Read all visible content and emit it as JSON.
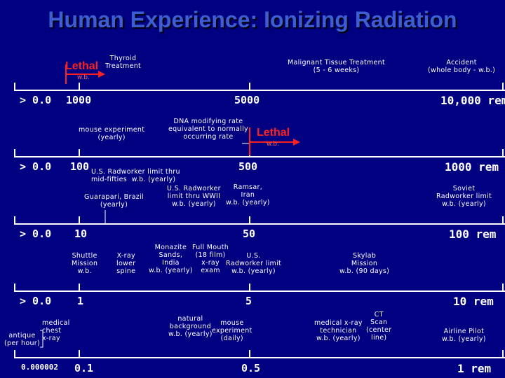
{
  "title": "Human Experience: Ionizing Radiation",
  "rows": [
    {
      "start": "> 0.0",
      "mid": "1000",
      "center": "5000",
      "end": "10,000 rem"
    },
    {
      "start": "> 0.0",
      "mid": "100",
      "center": "500",
      "end": "1000 rem"
    },
    {
      "start": "> 0.0",
      "mid": "10",
      "center": "50",
      "end": "100 rem"
    },
    {
      "start": "> 0.0",
      "mid": "1",
      "center": "5",
      "end": "10 rem"
    },
    {
      "start": "0.000002",
      "mid": "0.1",
      "center": "0.5",
      "end": "1 rem"
    }
  ],
  "annotations": {
    "lethal1": "Lethal",
    "wb1": "w.b.",
    "thyroid": "Thyroid\nTreatment",
    "malignant": "Malignant Tissue Treatment\n(5 - 6 weeks)",
    "accident": "Accident\n(whole body - w.b.)",
    "mouse_exp": "mouse experiment\n(yearly)",
    "dna": "DNA modifying rate\nequivalent to normally\noccurring rate",
    "lethal2": "Lethal",
    "wb2": "w.b.",
    "us_radworker_fifties": "U.S. Radworker limit thru\nmid-fifties  w.b. (yearly)",
    "guarapari": "Guarapari, Brazil\n(yearly)",
    "us_radworker_ww2": "U.S. Radworker\nlimit thru WWII\nw.b. (yearly)",
    "ramsar": "Ramsar,\nIran\nw.b. (yearly)",
    "soviet": "Soviet\nRadworker limit\nw.b. (yearly)",
    "shuttle": "Shuttle\nMission\nw.b.",
    "xray_spine": "X-ray\nlower\nspine",
    "monazite": "Monazite\nSands,\nIndia\nw.b. (yearly)",
    "full_mouth": "Full Mouth\n(18 film)\nx-ray\nexam",
    "us_radworker_limit": "U.S.\nRadworker limit\nw.b. (yearly)",
    "skylab": "Skylab\nMission\nw.b. (90 days)",
    "medical_chest": "medical\nchest\nx-ray",
    "antique": "antique\n(per hour)",
    "natural_bg": "natural\nbackground\nw.b. (yearly)",
    "mouse_daily": "mouse\nexperiment\n(daily)",
    "medical_tech": "medical x-ray\ntechnician\nw.b. (yearly)",
    "ct_scan": "CT\nScan\n(center\nline)",
    "airline": "Airline Pilot\nw.b. (yearly)"
  },
  "colors": {
    "background": "#000080",
    "title": "#3d5dd4",
    "lethal": "#ff2020",
    "text": "#ffffff"
  }
}
